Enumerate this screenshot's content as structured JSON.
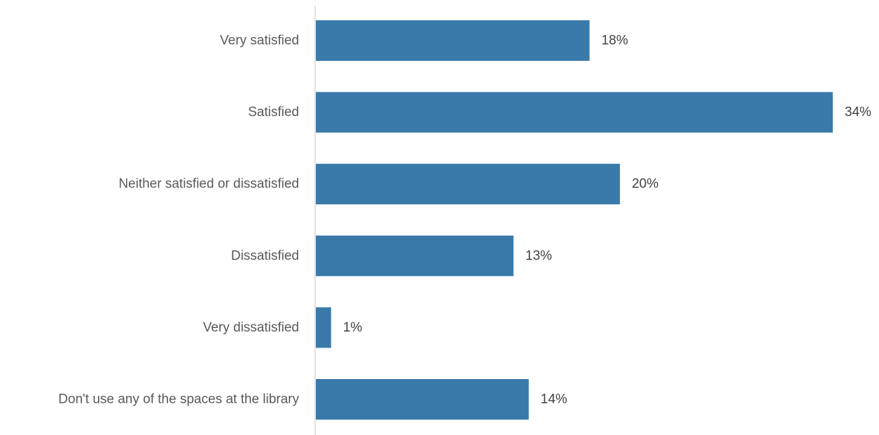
{
  "chart_data": {
    "type": "bar",
    "orientation": "horizontal",
    "categories": [
      "Very satisfied",
      "Satisfied",
      "Neither satisfied or dissatisfied",
      "Dissatisfied",
      "Very dissatisfied",
      "Don't use any of the spaces at the library"
    ],
    "values": [
      18,
      34,
      20,
      13,
      1,
      14
    ],
    "value_labels": [
      "18%",
      "34%",
      "20%",
      "13%",
      "1%",
      "14%"
    ],
    "unit": "%",
    "xlim": [
      0,
      34
    ],
    "grid": false,
    "legend": "none",
    "colors": {
      "bar": "#3a7aab",
      "axis": "#d9d9d9"
    }
  }
}
